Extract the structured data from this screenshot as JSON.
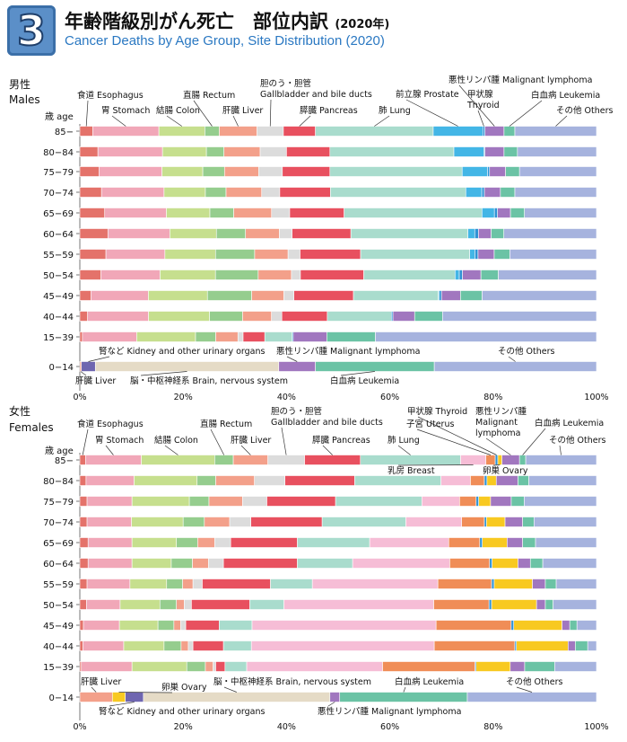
{
  "header": {
    "badge": "3",
    "title_jp": "年齢階級別がん死亡　部位内訳",
    "title_year": "(2020年)",
    "title_en": "Cancer Deaths by Age Group, Site Distribution (2020)"
  },
  "colors": {
    "食道 Esophagus": "#e4726a",
    "胃 Stomach": "#f1a7b8",
    "結腸 Colon": "#c6df8e",
    "直腸 Rectum": "#95cd8e",
    "肝臓 Liver": "#f3a08a",
    "胆のう・胆管 Gallbladder and bile ducts": "#dcdcdc",
    "膵臓 Pancreas": "#e8505f",
    "肺 Lung": "#a9dccd",
    "乳房 Breast": "#f6bdd6",
    "子宮 Uterus": "#f08d57",
    "卵巣 Ovary": "#f8c921",
    "前立腺 Prostate": "#43b6e6",
    "甲状腺 Thyroid": "#2f93d5",
    "腎など Kidney and other urinary organs": "#6f66b0",
    "脳・中枢神経系 Brain, nervous system": "#e5dbc6",
    "悪性リンパ腫 Malignant lymphoma": "#a177bf",
    "白血病 Leukemia": "#6bc3a5",
    "その他 Others": "#a6b3de"
  },
  "chart_data": [
    {
      "type": "bar",
      "stacked": "horizontal-100%",
      "panel_label_jp": "男性",
      "panel_label_en": "Males",
      "age_axis_label": "歳 age",
      "categories": [
        "85−",
        "80−84",
        "75−79",
        "70−74",
        "65−69",
        "60−64",
        "55−59",
        "50−54",
        "45−49",
        "40−44",
        "15−39",
        "0−14"
      ],
      "xlim": [
        0,
        100
      ],
      "xticks": [
        "0%",
        "20%",
        "40%",
        "60%",
        "80%",
        "100%"
      ],
      "annotations": [
        {
          "text": "食道 Esophagus",
          "series": "食道 Esophagus"
        },
        {
          "text": "胃 Stomach",
          "series": "胃 Stomach"
        },
        {
          "text": "結腸 Colon",
          "series": "結腸 Colon"
        },
        {
          "text": "直腸 Rectum",
          "series": "直腸 Rectum"
        },
        {
          "text": "肝臓 Liver",
          "series": "肝臓 Liver"
        },
        {
          "text": "胆のう・胆管",
          "text2": "Gallbladder and bile ducts",
          "series": "胆のう・胆管 Gallbladder and bile ducts"
        },
        {
          "text": "膵臓 Pancreas",
          "series": "膵臓 Pancreas"
        },
        {
          "text": "肺 Lung",
          "series": "肺 Lung"
        },
        {
          "text": "前立腺 Prostate",
          "series": "前立腺 Prostate"
        },
        {
          "text": "甲状腺",
          "text2": "Thyroid",
          "series": "甲状腺 Thyroid"
        },
        {
          "text": "悪性リンパ腫 Malignant lymphoma",
          "series": "悪性リンパ腫 Malignant lymphoma"
        },
        {
          "text": "白血病 Leukemia",
          "series": "白血病 Leukemia"
        },
        {
          "text": "その他 Others",
          "series": "その他 Others"
        },
        {
          "text": "腎など Kidney and other urinary organs",
          "series": "腎など Kidney and other urinary organs"
        },
        {
          "text": "悪性リンパ腫 Malignant lymphoma",
          "series": "悪性リンパ腫 Malignant lymphoma"
        },
        {
          "text": "その他 Others",
          "series": "その他 Others"
        },
        {
          "text": "肝臓 Liver",
          "series": "肝臓 Liver"
        },
        {
          "text": "脳・中枢神経系 Brain, nervous system",
          "series": "脳・中枢神経系 Brain, nervous system"
        },
        {
          "text": "白血病 Leukemia",
          "series": "白血病 Leukemia"
        }
      ],
      "series": [
        {
          "name": "食道 Esophagus",
          "values": [
            2.5,
            3.5,
            3.7,
            4.2,
            4.8,
            5.3,
            5.0,
            4.0,
            2.1,
            1.5,
            0.5,
            0
          ]
        },
        {
          "name": "胃 Stomach",
          "values": [
            12.8,
            12.5,
            12.2,
            12.1,
            11.9,
            11.7,
            11.3,
            11.2,
            10.9,
            11.8,
            10.5,
            0
          ]
        },
        {
          "name": "結腸 Colon",
          "values": [
            8.9,
            8.5,
            7.9,
            8.0,
            8.4,
            8.8,
            9.7,
            10.5,
            11.2,
            11.8,
            11.4,
            0
          ]
        },
        {
          "name": "直腸 Rectum",
          "values": [
            2.8,
            3.4,
            4.2,
            4.0,
            4.6,
            5.5,
            7.5,
            8.1,
            8.4,
            6.4,
            3.9,
            0
          ]
        },
        {
          "name": "肝臓 Liver",
          "values": [
            7.3,
            7.0,
            6.6,
            6.9,
            7.3,
            6.4,
            6.4,
            6.3,
            6.1,
            5.6,
            4.3,
            0.3
          ]
        },
        {
          "name": "胆のう・胆管 Gallbladder and bile ducts",
          "values": [
            5.1,
            5.1,
            4.6,
            3.5,
            3.5,
            2.4,
            2.3,
            1.7,
            1.9,
            2.0,
            1.0,
            0
          ]
        },
        {
          "name": "膵臓 Pancreas",
          "values": [
            6.2,
            8.4,
            9.2,
            9.8,
            10.5,
            11.1,
            11.6,
            12.0,
            11.3,
            8.8,
            4.2,
            0
          ]
        },
        {
          "name": "肺 Lung",
          "values": [
            22.8,
            24.0,
            25.6,
            26.2,
            26.6,
            22.1,
            20.9,
            17.3,
            16.1,
            12.4,
            5.3,
            0
          ]
        },
        {
          "name": "前立腺 Prostate",
          "values": [
            9.6,
            5.8,
            4.9,
            3.1,
            2.4,
            1.3,
            1.0,
            0.8,
            0.2,
            0,
            0,
            0
          ]
        },
        {
          "name": "甲状腺 Thyroid",
          "values": [
            0.4,
            0.2,
            0.4,
            0.5,
            0.6,
            0.7,
            0.6,
            0.6,
            0.4,
            0.3,
            0.2,
            0
          ]
        },
        {
          "name": "腎など Kidney and other urinary organs",
          "values": [
            0,
            0,
            0,
            0,
            0,
            0,
            0,
            0,
            0,
            0,
            0,
            2.7
          ]
        },
        {
          "name": "脳・中枢神経系 Brain, nervous system",
          "values": [
            0,
            0,
            0,
            0,
            0,
            0,
            0,
            0,
            0,
            0,
            0,
            35.5
          ]
        },
        {
          "name": "悪性リンパ腫 Malignant lymphoma",
          "values": [
            3.7,
            3.7,
            3.1,
            3.1,
            2.5,
            2.4,
            3.1,
            3.5,
            3.6,
            4.2,
            6.5,
            7.1
          ]
        },
        {
          "name": "白血病 Leukemia",
          "values": [
            2.1,
            2.6,
            2.7,
            2.8,
            2.7,
            2.4,
            3.0,
            3.3,
            4.1,
            5.4,
            9.4,
            23.0
          ]
        },
        {
          "name": "その他 Others",
          "values": [
            15.8,
            15.3,
            14.9,
            15.8,
            13.9,
            17.5,
            16.6,
            18.6,
            21.7,
            29.8,
            42.8,
            31.4
          ]
        }
      ]
    },
    {
      "type": "bar",
      "stacked": "horizontal-100%",
      "panel_label_jp": "女性",
      "panel_label_en": "Females",
      "age_axis_label": "歳 age",
      "categories": [
        "85−",
        "80−84",
        "75−79",
        "70−74",
        "65−69",
        "60−64",
        "55−59",
        "50−54",
        "45−49",
        "40−44",
        "15−39",
        "0−14"
      ],
      "xlim": [
        0,
        100
      ],
      "xticks": [
        "0%",
        "20%",
        "40%",
        "60%",
        "80%",
        "100%"
      ],
      "annotations": [
        {
          "text": "食道 Esophagus",
          "series": "食道 Esophagus"
        },
        {
          "text": "胃 Stomach",
          "series": "胃 Stomach"
        },
        {
          "text": "結腸 Colon",
          "series": "結腸 Colon"
        },
        {
          "text": "直腸 Rectum",
          "series": "直腸 Rectum"
        },
        {
          "text": "肝臓 Liver",
          "series": "肝臓 Liver"
        },
        {
          "text": "胆のう・胆管",
          "text2": "Gallbladder and bile ducts",
          "series": "胆のう・胆管 Gallbladder and bile ducts"
        },
        {
          "text": "膵臓 Pancreas",
          "series": "膵臓 Pancreas"
        },
        {
          "text": "肺 Lung",
          "series": "肺 Lung"
        },
        {
          "text": "甲状腺 Thyroid",
          "series": "甲状腺 Thyroid"
        },
        {
          "text": "子宮 Uterus",
          "series": "子宮 Uterus"
        },
        {
          "text": "悪性リンパ腫",
          "text2": "Malignant",
          "text3": "lymphoma",
          "series": "悪性リンパ腫 Malignant lymphoma"
        },
        {
          "text": "白血病 Leukemia",
          "series": "白血病 Leukemia"
        },
        {
          "text": "その他 Others",
          "series": "その他 Others"
        },
        {
          "text": "乳房 Breast",
          "series": "乳房 Breast"
        },
        {
          "text": "卵巣 Ovary",
          "series": "卵巣 Ovary"
        },
        {
          "text": "肝臓 Liver",
          "series": "肝臓 Liver"
        },
        {
          "text": "卵巣 Ovary",
          "series": "卵巣 Ovary"
        },
        {
          "text": "脳・中枢神経系 Brain, nervous system",
          "series": "脳・中枢神経系 Brain, nervous system"
        },
        {
          "text": "白血病 Leukemia",
          "series": "白血病 Leukemia"
        },
        {
          "text": "その他 Others",
          "series": "その他 Others"
        },
        {
          "text": "腎など Kidney and other urinary organs",
          "series": "腎など Kidney and other urinary organs"
        },
        {
          "text": "悪性リンパ腫 Malignant lymphoma",
          "series": "悪性リンパ腫 Malignant lymphoma"
        }
      ],
      "series": [
        {
          "name": "食道 Esophagus",
          "values": [
            1.1,
            1.2,
            1.4,
            1.4,
            1.6,
            1.6,
            1.4,
            1.3,
            0.7,
            0.6,
            0.3,
            0
          ]
        },
        {
          "name": "胃 Stomach",
          "values": [
            10.8,
            9.3,
            8.7,
            8.6,
            8.5,
            8.5,
            8.3,
            6.5,
            7.0,
            7.9,
            9.8,
            0
          ]
        },
        {
          "name": "結腸 Colon",
          "values": [
            14.2,
            12.2,
            11.1,
            10.0,
            8.6,
            7.6,
            7.1,
            7.7,
            7.5,
            7.8,
            10.6,
            0
          ]
        },
        {
          "name": "直腸 Rectum",
          "values": [
            3.6,
            3.6,
            3.8,
            4.1,
            4.1,
            4.1,
            3.1,
            3.2,
            3.1,
            3.3,
            3.6,
            0
          ]
        },
        {
          "name": "肝臓 Liver",
          "values": [
            6.7,
            7.5,
            6.5,
            4.9,
            3.3,
            3.1,
            2.0,
            1.5,
            1.3,
            1.4,
            1.5,
            6.3
          ]
        },
        {
          "name": "胆のう・胆管 Gallbladder and bile ducts",
          "values": [
            7.1,
            5.9,
            4.7,
            4.1,
            3.1,
            2.9,
            1.8,
            1.4,
            1.0,
            0.9,
            0.5,
            0
          ]
        },
        {
          "name": "膵臓 Pancreas",
          "values": [
            10.8,
            13.5,
            13.3,
            13.8,
            12.9,
            14.3,
            13.2,
            11.3,
            6.5,
            5.9,
            1.8,
            0
          ]
        },
        {
          "name": "肺 Lung",
          "values": [
            19.4,
            16.7,
            16.7,
            16.2,
            14.0,
            10.7,
            8.1,
            6.6,
            6.4,
            5.4,
            4.2,
            0
          ]
        },
        {
          "name": "乳房 Breast",
          "values": [
            4.9,
            5.7,
            7.3,
            10.8,
            15.3,
            18.8,
            24.3,
            29.0,
            35.8,
            35.4,
            26.3,
            0
          ]
        },
        {
          "name": "子宮 Uterus",
          "values": [
            1.8,
            2.7,
            3.2,
            4.4,
            6.0,
            7.7,
            10.4,
            10.7,
            14.6,
            15.6,
            17.9,
            0
          ]
        },
        {
          "name": "甲状腺 Thyroid",
          "values": [
            0.5,
            0.5,
            0.5,
            0.4,
            0.5,
            0.5,
            0.5,
            0.5,
            0.5,
            0.3,
            0.2,
            0
          ]
        },
        {
          "name": "卵巣 Ovary",
          "values": [
            0.8,
            1.8,
            2.3,
            3.6,
            4.8,
            5.0,
            7.4,
            8.7,
            9.4,
            10.0,
            6.6,
            2.5
          ]
        },
        {
          "name": "腎など Kidney and other urinary organs",
          "values": [
            0,
            0,
            0,
            0,
            0,
            0,
            0,
            0,
            0,
            0,
            0,
            3.5
          ]
        },
        {
          "name": "脳・中枢神経系 Brain, nervous system",
          "values": [
            0,
            0,
            0,
            0,
            0,
            0,
            0,
            0,
            0,
            0,
            0,
            36.1
          ]
        },
        {
          "name": "悪性リンパ腫 Malignant lymphoma",
          "values": [
            3.4,
            4.2,
            4.0,
            3.4,
            3.0,
            2.4,
            2.5,
            1.7,
            1.5,
            1.4,
            2.8,
            1.9
          ]
        },
        {
          "name": "白血病 Leukemia",
          "values": [
            1.2,
            2.1,
            2.5,
            2.2,
            2.5,
            2.4,
            2.1,
            1.5,
            1.4,
            2.4,
            5.8,
            24.7
          ]
        },
        {
          "name": "その他 Others",
          "values": [
            13.7,
            13.1,
            14.0,
            12.1,
            11.8,
            10.4,
            7.8,
            8.4,
            3.8,
            1.7,
            8.1,
            25.0
          ]
        }
      ]
    }
  ]
}
